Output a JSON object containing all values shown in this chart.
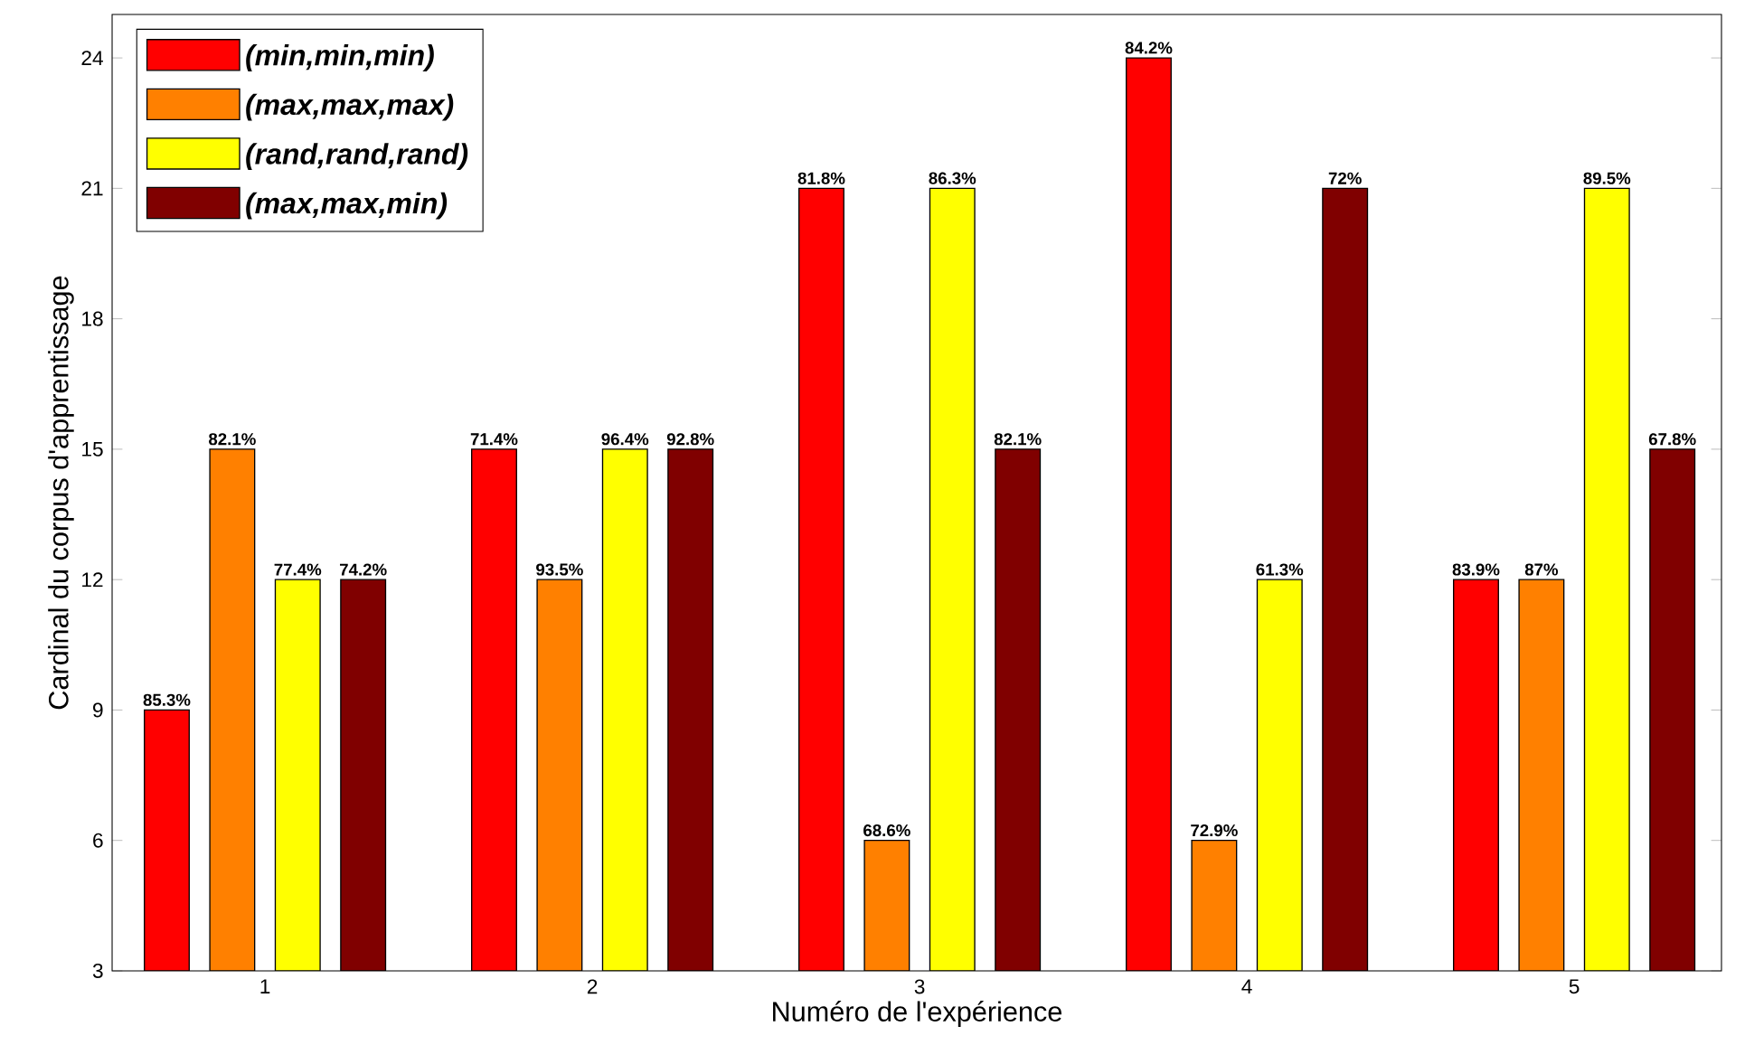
{
  "chart_data": {
    "type": "bar",
    "xlabel": "Numéro de l'expérience",
    "ylabel": "Cardinal du corpus d'apprentissage",
    "categories": [
      "1",
      "2",
      "3",
      "4",
      "5"
    ],
    "series": [
      {
        "name": "(min,min,min)",
        "color": "#ff0000",
        "values": [
          9,
          15,
          21,
          24,
          12
        ]
      },
      {
        "name": "(max,max,max)",
        "color": "#ff8000",
        "values": [
          15,
          12,
          6,
          6,
          12
        ]
      },
      {
        "name": "(rand,rand,rand)",
        "color": "#ffff00",
        "values": [
          12,
          15,
          21,
          12,
          21
        ]
      },
      {
        "name": "(max,max,min)",
        "color": "#800000",
        "values": [
          12,
          15,
          15,
          21,
          15
        ]
      }
    ],
    "annotations": [
      "85.3%",
      "71.4%",
      "81.8%",
      "84.2%",
      "83.9%",
      "82.1%",
      "93.5%",
      "68.6%",
      "72.9%",
      "87%",
      "77.4%",
      "96.4%",
      "86.3%",
      "61.3%",
      "89.5%",
      "74.2%",
      "92.8%",
      "82.1%",
      "72%",
      "67.8%"
    ],
    "ylim": [
      3,
      25
    ],
    "yticks": [
      3,
      6,
      9,
      12,
      15,
      18,
      21,
      24
    ],
    "legend": "top left"
  }
}
